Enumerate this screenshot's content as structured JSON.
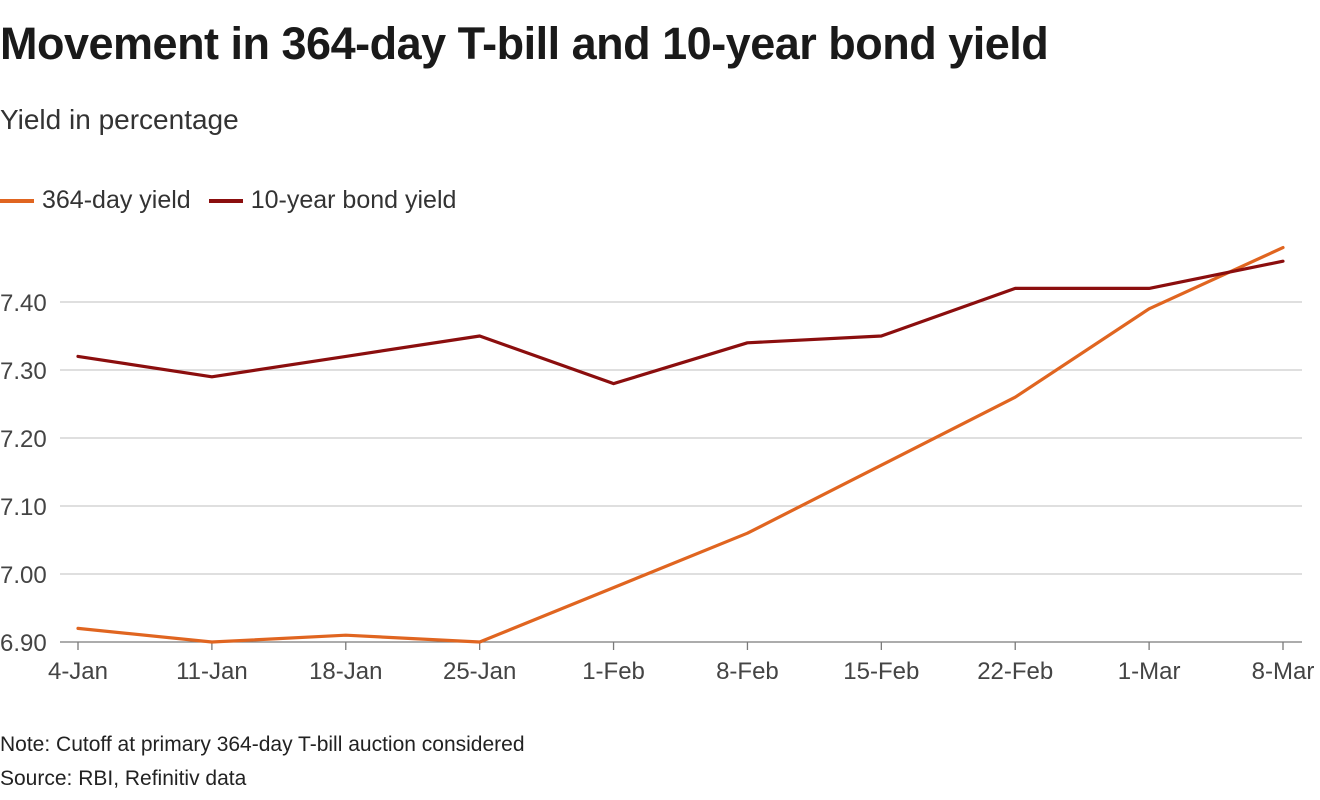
{
  "chart_data": {
    "type": "line",
    "title": "Movement in 364-day T-bill and 10-year bond yield",
    "subtitle": "Yield in percentage",
    "categories": [
      "4-Jan",
      "11-Jan",
      "18-Jan",
      "25-Jan",
      "1-Feb",
      "8-Feb",
      "15-Feb",
      "22-Feb",
      "1-Mar",
      "8-Mar"
    ],
    "series": [
      {
        "name": "364-day yield",
        "color": "#e06520",
        "values": [
          6.92,
          6.9,
          6.91,
          6.9,
          6.98,
          7.06,
          7.16,
          7.26,
          7.39,
          7.48
        ]
      },
      {
        "name": "10-year bond yield",
        "color": "#8b0e0e",
        "values": [
          7.32,
          7.29,
          7.32,
          7.35,
          7.28,
          7.34,
          7.35,
          7.42,
          7.42,
          7.46
        ]
      }
    ],
    "ylim": [
      6.9,
      7.48
    ],
    "yticks": [
      "6.90",
      "7.00",
      "7.10",
      "7.20",
      "7.30",
      "7.40"
    ],
    "grid": true,
    "legend_position": "top-left"
  },
  "footer": {
    "note": "Note: Cutoff at primary 364-day T-bill auction considered",
    "source": "Source: RBI, Refinitiv data"
  }
}
